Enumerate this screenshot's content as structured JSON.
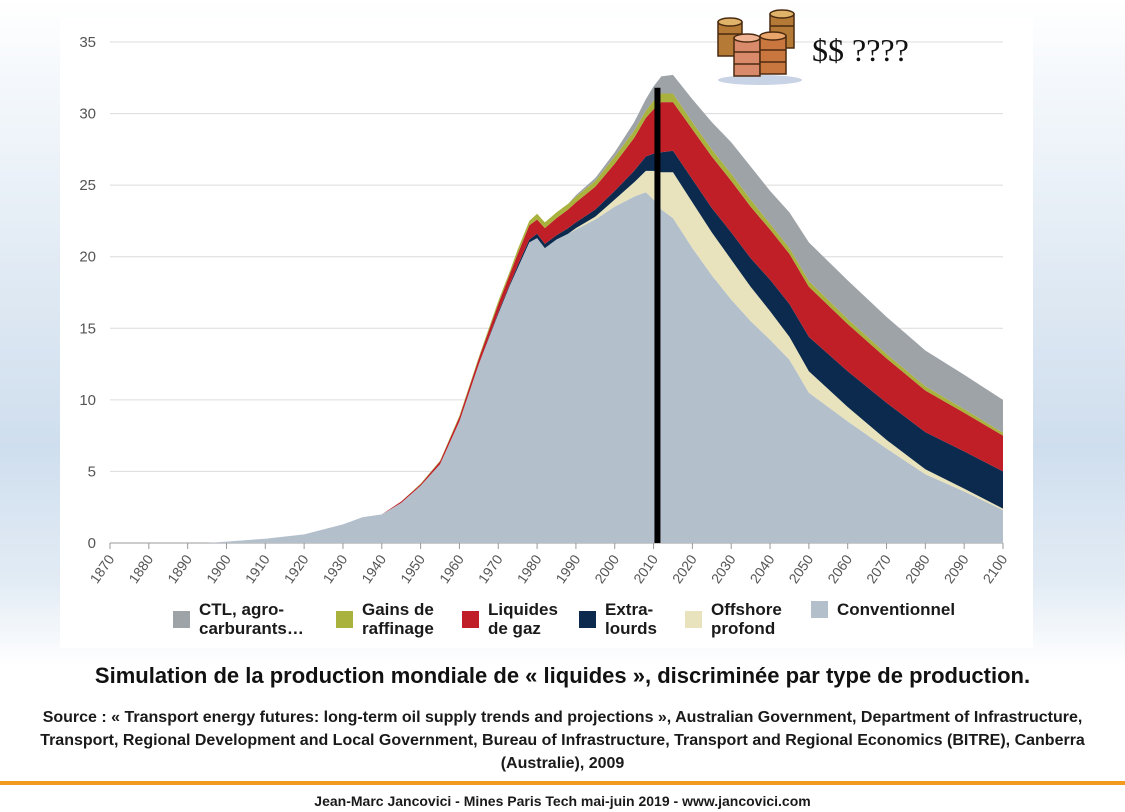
{
  "callout": {
    "text": "$$ ????"
  },
  "caption": {
    "title": "Simulation de la production mondiale de « liquides », discriminée par type de production.",
    "source": "Source : « Transport energy futures: long-term oil supply trends and projections », Australian Government, Department of Infrastructure, Transport, Regional Development and Local Government, Bureau of Infrastructure, Transport and Regional Economics (BITRE), Canberra (Australie), 2009"
  },
  "footer": {
    "text": "Jean-Marc Jancovici - Mines Paris Tech mai-juin 2019 - www.jancovici.com"
  },
  "chart_data": {
    "type": "area",
    "stacked": true,
    "title": "",
    "xlabel": "",
    "ylabel": "",
    "xlim": [
      1870,
      2100
    ],
    "ylim": [
      0,
      35
    ],
    "grid": true,
    "legend_position": "bottom",
    "x_ticks": [
      1870,
      1880,
      1890,
      1900,
      1910,
      1920,
      1930,
      1940,
      1950,
      1960,
      1970,
      1980,
      1990,
      2000,
      2010,
      2020,
      2030,
      2040,
      2050,
      2060,
      2070,
      2080,
      2090,
      2100
    ],
    "y_ticks": [
      0,
      5,
      10,
      15,
      20,
      25,
      30,
      35
    ],
    "x": [
      1895,
      1900,
      1910,
      1920,
      1930,
      1935,
      1940,
      1945,
      1950,
      1955,
      1960,
      1965,
      1970,
      1973,
      1975,
      1978,
      1980,
      1982,
      1985,
      1988,
      1990,
      1995,
      2000,
      2005,
      2008,
      2010,
      2012,
      2015,
      2020,
      2025,
      2030,
      2035,
      2040,
      2045,
      2050,
      2060,
      2070,
      2080,
      2090,
      2100
    ],
    "series": [
      {
        "name": "Conventionnel",
        "color": "#b4bfcc",
        "values": [
          0,
          0.1,
          0.3,
          0.6,
          1.3,
          1.8,
          2.0,
          2.8,
          4.0,
          5.5,
          8.5,
          12.5,
          16.0,
          18.0,
          19.2,
          21.0,
          21.3,
          20.6,
          21.2,
          21.6,
          21.9,
          22.6,
          23.5,
          24.2,
          24.5,
          24.0,
          23.3,
          22.7,
          20.6,
          18.7,
          17.0,
          15.5,
          14.2,
          12.8,
          10.5,
          8.5,
          6.6,
          4.8,
          3.6,
          2.3
        ]
      },
      {
        "name": "Offshore\nprofond",
        "color": "#e8e3bc",
        "values": [
          0,
          0,
          0,
          0,
          0,
          0,
          0,
          0,
          0,
          0,
          0,
          0,
          0,
          0,
          0,
          0,
          0,
          0,
          0,
          0,
          0.1,
          0.2,
          0.5,
          1.0,
          1.5,
          2.0,
          2.6,
          3.2,
          3.2,
          3.0,
          2.8,
          2.4,
          2.0,
          1.6,
          1.5,
          1.0,
          0.6,
          0.35,
          0.2,
          0.1
        ]
      },
      {
        "name": "Extra-\nlourds",
        "color": "#0b2a4e",
        "values": [
          0,
          0,
          0,
          0,
          0,
          0,
          0,
          0,
          0,
          0,
          0,
          0,
          0.1,
          0.1,
          0.2,
          0.2,
          0.3,
          0.3,
          0.3,
          0.4,
          0.4,
          0.5,
          0.6,
          0.8,
          1.0,
          1.2,
          1.4,
          1.5,
          1.6,
          1.7,
          1.9,
          2.0,
          2.2,
          2.3,
          2.4,
          2.5,
          2.6,
          2.6,
          2.6,
          2.6
        ]
      },
      {
        "name": "Liquides\nde gaz",
        "color": "#c01f27",
        "values": [
          0,
          0,
          0,
          0,
          0,
          0,
          0,
          0.1,
          0.1,
          0.2,
          0.3,
          0.4,
          0.6,
          0.7,
          0.8,
          1.0,
          1.0,
          1.1,
          1.2,
          1.3,
          1.4,
          1.6,
          1.9,
          2.3,
          2.7,
          3.1,
          3.5,
          3.4,
          3.5,
          3.6,
          3.6,
          3.6,
          3.5,
          3.5,
          3.5,
          3.3,
          3.1,
          2.9,
          2.7,
          2.5
        ]
      },
      {
        "name": "Gains de\nraffinage",
        "color": "#a9b23c",
        "values": [
          0,
          0,
          0,
          0,
          0,
          0,
          0,
          0,
          0.05,
          0.05,
          0.1,
          0.1,
          0.2,
          0.2,
          0.3,
          0.3,
          0.4,
          0.4,
          0.4,
          0.4,
          0.4,
          0.4,
          0.5,
          0.5,
          0.5,
          0.6,
          0.6,
          0.6,
          0.5,
          0.5,
          0.5,
          0.5,
          0.4,
          0.4,
          0.4,
          0.35,
          0.3,
          0.3,
          0.25,
          0.2
        ]
      },
      {
        "name": "CTL, agro-\ncarburants…",
        "color": "#9ea3a8",
        "values": [
          0,
          0,
          0,
          0,
          0,
          0,
          0,
          0,
          0,
          0,
          0,
          0,
          0,
          0,
          0,
          0,
          0,
          0,
          0,
          0,
          0.1,
          0.2,
          0.3,
          0.6,
          0.8,
          1.0,
          1.2,
          1.3,
          1.6,
          1.9,
          2.2,
          2.3,
          2.3,
          2.5,
          2.7,
          2.7,
          2.6,
          2.5,
          2.4,
          2.3
        ]
      }
    ],
    "legend_order": [
      "CTL, agro-\ncarburants…",
      "Gains de\nraffinage",
      "Liquides\nde gaz",
      "Extra-\nlourds",
      "Offshore\nprofond",
      "Conventionnel"
    ],
    "marker": {
      "x": 2011,
      "orientation": "vertical",
      "color": "#000000"
    }
  }
}
